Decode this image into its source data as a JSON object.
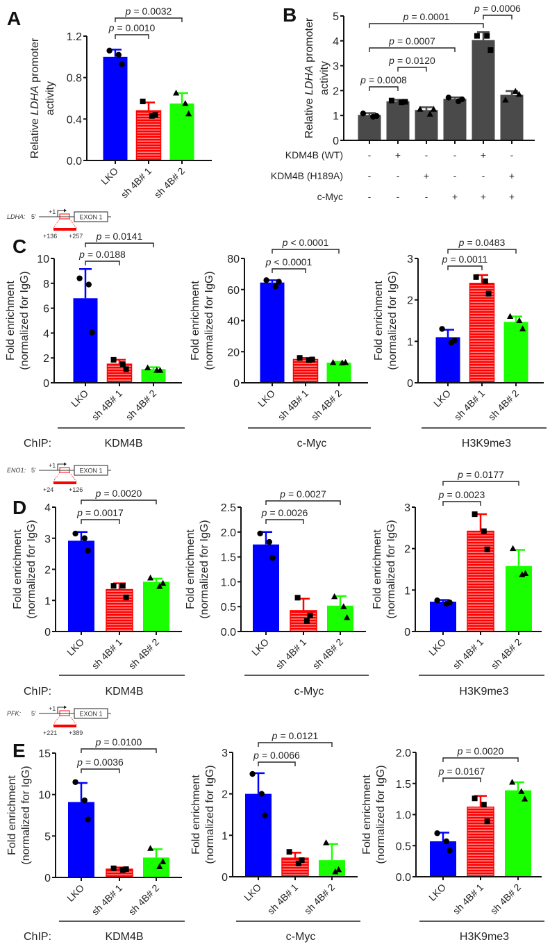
{
  "colors": {
    "lko": "#0000ff",
    "sh1": "#ff0000",
    "sh2": "#1aff00",
    "b_bars": "#4a4a4a",
    "axis": "#111111"
  },
  "panel_letters": {
    "A": "A",
    "B": "B",
    "C": "C",
    "D": "D",
    "E": "E"
  },
  "chip_label": "ChIP:",
  "p_symbol": "p",
  "gene_diagrams": [
    {
      "gene": "LDHA:",
      "five_prime": "5'",
      "tss": "+1",
      "exon": "EXON 1",
      "region_start": "+136",
      "region_end": "+257"
    },
    {
      "gene": "ENO1:",
      "five_prime": "5'",
      "tss": "+1",
      "exon": "EXON 1",
      "region_start": "+24",
      "region_end": "+126"
    },
    {
      "gene": "PFK:",
      "five_prime": "5'",
      "tss": "+1",
      "exon": "EXON 1",
      "region_start": "+221",
      "region_end": "+389"
    }
  ],
  "panel_b_conditions": [
    {
      "label": "KDM4B (WT)",
      "signs": [
        "-",
        "+",
        "-",
        "-",
        "+",
        "-"
      ]
    },
    {
      "label": "KDM4B (H189A)",
      "signs": [
        "-",
        "-",
        "+",
        "-",
        "-",
        "+"
      ]
    },
    {
      "label": "c-Myc",
      "signs": [
        "-",
        "-",
        "-",
        "+",
        "+",
        "+"
      ]
    }
  ],
  "chart_data": [
    {
      "id": "A",
      "type": "bar",
      "panel": "A",
      "ylabel": [
        [
          {
            "text": "Relative ",
            "italic": false
          },
          {
            "text": "LDHA",
            "italic": true
          },
          {
            "text": " promoter",
            "italic": false
          }
        ],
        [
          {
            "text": "activity",
            "italic": false
          }
        ]
      ],
      "ylim": [
        0,
        1.2
      ],
      "yticks": [
        "0.0",
        "0.4",
        "0.8",
        "1.2"
      ],
      "ytick_values": [
        0,
        0.4,
        0.8,
        1.2
      ],
      "categories": [
        "LKO",
        "sh 4B# 1",
        "sh 4B# 2"
      ],
      "means": [
        1.0,
        0.48,
        0.55
      ],
      "error_upper": [
        1.07,
        0.56,
        0.65
      ],
      "points": [
        [
          1.06,
          1.02,
          0.93
        ],
        [
          0.57,
          0.43,
          0.44
        ],
        [
          0.65,
          0.55,
          0.45
        ]
      ],
      "markers": [
        "circle",
        "square",
        "triangle"
      ],
      "fills": [
        "lko",
        "sh1",
        "sh2"
      ],
      "comparisons": [
        {
          "between": [
            0,
            1
          ],
          "p": "= 0.0010"
        },
        {
          "between": [
            0,
            2
          ],
          "p": "= 0.0032"
        }
      ]
    },
    {
      "id": "B",
      "type": "bar",
      "panel": "B",
      "ylabel": [
        [
          {
            "text": "Relative ",
            "italic": false
          },
          {
            "text": "LDHA",
            "italic": true
          },
          {
            "text": " promoter",
            "italic": false
          }
        ],
        [
          {
            "text": "activity",
            "italic": false
          }
        ]
      ],
      "ylim": [
        0,
        5
      ],
      "yticks": [
        "0",
        "1",
        "2",
        "3",
        "4",
        "5"
      ],
      "ytick_values": [
        0,
        1,
        2,
        3,
        4,
        5
      ],
      "categories": [],
      "means": [
        1.02,
        1.57,
        1.22,
        1.67,
        4.03,
        1.83
      ],
      "error_upper": [
        1.1,
        1.63,
        1.33,
        1.73,
        4.35,
        1.98
      ],
      "points": [
        [
          1.08,
          0.95,
          0.98
        ],
        [
          1.6,
          1.53,
          1.55
        ],
        [
          1.25,
          1.05,
          1.25
        ],
        [
          1.72,
          1.57,
          1.65
        ],
        [
          4.2,
          4.2,
          3.63
        ],
        [
          1.62,
          1.97,
          1.85
        ]
      ],
      "markers": [
        "circle",
        "square",
        "triangle",
        "circle",
        "square",
        "triangle"
      ],
      "fills": [
        "b_bars",
        "b_bars",
        "b_bars",
        "b_bars",
        "b_bars",
        "b_bars"
      ],
      "comparisons": [
        {
          "between": [
            0,
            1
          ],
          "p": "= 0.0008"
        },
        {
          "between": [
            1,
            2
          ],
          "p": "= 0.0120"
        },
        {
          "between": [
            0,
            3
          ],
          "p": "= 0.0007"
        },
        {
          "between": [
            0,
            4
          ],
          "p": "= 0.0001"
        },
        {
          "between": [
            4,
            5
          ],
          "p": "= 0.0006"
        }
      ]
    },
    {
      "id": "C1",
      "type": "bar",
      "panel": "C",
      "chip_target": "KDM4B",
      "ylabel": [
        [
          {
            "text": "Fold enrichment",
            "italic": false
          }
        ],
        [
          {
            "text": "(normalized for IgG)",
            "italic": false
          }
        ]
      ],
      "ylim": [
        0,
        10
      ],
      "yticks": [
        "0",
        "2",
        "4",
        "6",
        "8",
        "10"
      ],
      "ytick_values": [
        0,
        2,
        4,
        6,
        8,
        10
      ],
      "categories": [
        "LKO",
        "sh 4B# 1",
        "sh 4B# 2"
      ],
      "means": [
        6.8,
        1.5,
        1.1
      ],
      "error_upper": [
        9.15,
        1.85,
        1.25
      ],
      "points": [
        [
          8.4,
          7.9,
          4.05
        ],
        [
          1.85,
          1.5,
          1.1
        ],
        [
          1.2,
          1.0,
          1.0
        ]
      ],
      "markers": [
        "circle",
        "square",
        "triangle"
      ],
      "fills": [
        "lko",
        "sh1",
        "sh2"
      ],
      "comparisons": [
        {
          "between": [
            0,
            1
          ],
          "p": "= 0.0188"
        },
        {
          "between": [
            0,
            2
          ],
          "p": "= 0.0141"
        }
      ]
    },
    {
      "id": "C2",
      "type": "bar",
      "panel": "C",
      "chip_target": "c-Myc",
      "ylabel": [
        [
          {
            "text": "Fold enrichment",
            "italic": false
          }
        ],
        [
          {
            "text": "(normalized for IgG)",
            "italic": false
          }
        ]
      ],
      "ylim": [
        0,
        80
      ],
      "yticks": [
        "0",
        "20",
        "40",
        "60",
        "80"
      ],
      "ytick_values": [
        0,
        20,
        40,
        60,
        80
      ],
      "categories": [
        "LKO",
        "sh 4B# 1",
        "sh 4B# 2"
      ],
      "means": [
        64.5,
        15,
        13
      ],
      "error_upper": [
        66,
        16,
        13.5
      ],
      "points": [
        [
          66,
          62,
          65
        ],
        [
          16,
          14.5,
          15
        ],
        [
          13,
          12.8,
          13
        ]
      ],
      "markers": [
        "circle",
        "square",
        "triangle"
      ],
      "fills": [
        "lko",
        "sh1",
        "sh2"
      ],
      "comparisons": [
        {
          "between": [
            0,
            1
          ],
          "p": "< 0.0001"
        },
        {
          "between": [
            0,
            2
          ],
          "p": "< 0.0001"
        }
      ]
    },
    {
      "id": "C3",
      "type": "bar",
      "panel": "C",
      "chip_target": "H3K9me3",
      "ylabel": [
        [
          {
            "text": "Fold enrichment",
            "italic": false
          }
        ],
        [
          {
            "text": "(normalized for IgG)",
            "italic": false
          }
        ]
      ],
      "ylim": [
        0,
        3
      ],
      "yticks": [
        "0",
        "1",
        "2",
        "3"
      ],
      "ytick_values": [
        0,
        1,
        2,
        3
      ],
      "categories": [
        "LKO",
        "sh 4B# 1",
        "sh 4B# 2"
      ],
      "means": [
        1.1,
        2.4,
        1.47
      ],
      "error_upper": [
        1.28,
        2.6,
        1.6
      ],
      "points": [
        [
          1.3,
          0.97,
          1.02
        ],
        [
          2.55,
          2.45,
          2.15
        ],
        [
          1.6,
          1.5,
          1.3
        ]
      ],
      "markers": [
        "circle",
        "square",
        "triangle"
      ],
      "fills": [
        "lko",
        "sh1",
        "sh2"
      ],
      "comparisons": [
        {
          "between": [
            0,
            1
          ],
          "p": "= 0.0011"
        },
        {
          "between": [
            0,
            2
          ],
          "p": "= 0.0483"
        }
      ]
    },
    {
      "id": "D1",
      "type": "bar",
      "panel": "D",
      "chip_target": "KDM4B",
      "ylabel": [
        [
          {
            "text": "Fold enrichment",
            "italic": false
          }
        ],
        [
          {
            "text": "(normalized for IgG)",
            "italic": false
          }
        ]
      ],
      "ylim": [
        0,
        4
      ],
      "yticks": [
        "0",
        "1",
        "2",
        "3",
        "4"
      ],
      "ytick_values": [
        0,
        1,
        2,
        3,
        4
      ],
      "categories": [
        "LKO",
        "sh 4B# 1",
        "sh 4B# 2"
      ],
      "means": [
        2.92,
        1.35,
        1.6
      ],
      "error_upper": [
        3.2,
        1.55,
        1.7
      ],
      "points": [
        [
          3.15,
          3.0,
          2.6
        ],
        [
          1.47,
          1.47,
          1.1
        ],
        [
          1.72,
          1.45,
          1.55
        ]
      ],
      "markers": [
        "circle",
        "square",
        "triangle"
      ],
      "fills": [
        "lko",
        "sh1",
        "sh2"
      ],
      "comparisons": [
        {
          "between": [
            0,
            1
          ],
          "p": "= 0.0017"
        },
        {
          "between": [
            0,
            2
          ],
          "p": "= 0.0020"
        }
      ]
    },
    {
      "id": "D2",
      "type": "bar",
      "panel": "D",
      "chip_target": "c-Myc",
      "ylabel": [
        [
          {
            "text": "Fold enrichment",
            "italic": false
          }
        ],
        [
          {
            "text": "(normalized for IgG)",
            "italic": false
          }
        ]
      ],
      "ylim": [
        0,
        2.5
      ],
      "yticks": [
        "0.0",
        "0.5",
        "1.0",
        "1.5",
        "2.0",
        "2.5"
      ],
      "ytick_values": [
        0,
        0.5,
        1,
        1.5,
        2,
        2.5
      ],
      "categories": [
        "LKO",
        "sh 4B# 1",
        "sh 4B# 2"
      ],
      "means": [
        1.75,
        0.42,
        0.52
      ],
      "error_upper": [
        2.0,
        0.66,
        0.71
      ],
      "points": [
        [
          1.97,
          1.8,
          1.48
        ],
        [
          0.68,
          0.21,
          0.32
        ],
        [
          0.7,
          0.5,
          0.28
        ]
      ],
      "markers": [
        "circle",
        "square",
        "triangle"
      ],
      "fills": [
        "lko",
        "sh1",
        "sh2"
      ],
      "comparisons": [
        {
          "between": [
            0,
            1
          ],
          "p": "= 0.0026"
        },
        {
          "between": [
            0,
            2
          ],
          "p": "= 0.0027"
        }
      ]
    },
    {
      "id": "D3",
      "type": "bar",
      "panel": "D",
      "chip_target": "H3K9me3",
      "ylabel": [
        [
          {
            "text": "Fold enrichment",
            "italic": false
          }
        ],
        [
          {
            "text": "(normalized for IgG)",
            "italic": false
          }
        ]
      ],
      "ylim": [
        0,
        3
      ],
      "yticks": [
        "0",
        "1",
        "2",
        "3"
      ],
      "ytick_values": [
        0,
        1,
        2,
        3
      ],
      "categories": [
        "LKO",
        "sh 4B# 1",
        "sh 4B# 2"
      ],
      "means": [
        0.72,
        2.42,
        1.58
      ],
      "error_upper": [
        0.76,
        2.83,
        1.97
      ],
      "points": [
        [
          0.75,
          0.67,
          0.7
        ],
        [
          2.83,
          2.42,
          1.98
        ],
        [
          2.0,
          1.37,
          1.4
        ]
      ],
      "markers": [
        "circle",
        "square",
        "triangle"
      ],
      "fills": [
        "lko",
        "sh1",
        "sh2"
      ],
      "comparisons": [
        {
          "between": [
            0,
            1
          ],
          "p": "= 0.0023"
        },
        {
          "between": [
            0,
            2
          ],
          "p": "= 0.0177"
        }
      ]
    },
    {
      "id": "E1",
      "type": "bar",
      "panel": "E",
      "chip_target": "KDM4B",
      "ylabel": [
        [
          {
            "text": "Fold enrichment",
            "italic": false
          }
        ],
        [
          {
            "text": "(normalized for IgG)",
            "italic": false
          }
        ]
      ],
      "ylim": [
        0,
        15
      ],
      "yticks": [
        "0",
        "5",
        "10",
        "15"
      ],
      "ytick_values": [
        0,
        5,
        10,
        15
      ],
      "categories": [
        "LKO",
        "sh 4B# 1",
        "sh 4B# 2"
      ],
      "means": [
        9.1,
        1.0,
        2.4
      ],
      "error_upper": [
        11.4,
        1.2,
        3.4
      ],
      "points": [
        [
          11.5,
          9.3,
          7.0
        ],
        [
          1.1,
          0.9,
          1.0
        ],
        [
          3.5,
          1.3,
          1.9
        ]
      ],
      "markers": [
        "circle",
        "square",
        "triangle"
      ],
      "fills": [
        "lko",
        "sh1",
        "sh2"
      ],
      "comparisons": [
        {
          "between": [
            0,
            1
          ],
          "p": "= 0.0036"
        },
        {
          "between": [
            0,
            2
          ],
          "p": "= 0.0100"
        }
      ]
    },
    {
      "id": "E2",
      "type": "bar",
      "panel": "E",
      "chip_target": "c-Myc",
      "ylabel": [
        [
          {
            "text": "Fold enrichment",
            "italic": false
          }
        ],
        [
          {
            "text": "(normalized for IgG)",
            "italic": false
          }
        ]
      ],
      "ylim": [
        0,
        3
      ],
      "yticks": [
        "0",
        "1",
        "2",
        "3"
      ],
      "ytick_values": [
        0,
        1,
        2,
        3
      ],
      "categories": [
        "LKO",
        "sh 4B# 1",
        "sh 4B# 2"
      ],
      "means": [
        2.0,
        0.45,
        0.4
      ],
      "error_upper": [
        2.5,
        0.58,
        0.79
      ],
      "points": [
        [
          2.48,
          2.0,
          1.48
        ],
        [
          0.6,
          0.32,
          0.4
        ],
        [
          0.82,
          0.12,
          0.17
        ]
      ],
      "markers": [
        "circle",
        "square",
        "triangle"
      ],
      "fills": [
        "lko",
        "sh1",
        "sh2"
      ],
      "comparisons": [
        {
          "between": [
            0,
            1
          ],
          "p": "= 0.0066"
        },
        {
          "between": [
            0,
            2
          ],
          "p": "= 0.0121"
        }
      ]
    },
    {
      "id": "E3",
      "type": "bar",
      "panel": "E",
      "chip_target": "H3K9me3",
      "ylabel": [
        [
          {
            "text": "Fold enrichment",
            "italic": false
          }
        ],
        [
          {
            "text": "(normalized for IgG)",
            "italic": false
          }
        ]
      ],
      "ylim": [
        0,
        2
      ],
      "yticks": [
        "0.0",
        "0.5",
        "1.0",
        "1.5",
        "2.0"
      ],
      "ytick_values": [
        0,
        0.5,
        1,
        1.5,
        2
      ],
      "categories": [
        "LKO",
        "sh 4B# 1",
        "sh 4B# 2"
      ],
      "means": [
        0.57,
        1.12,
        1.39
      ],
      "error_upper": [
        0.71,
        1.3,
        1.52
      ],
      "points": [
        [
          0.7,
          0.57,
          0.42
        ],
        [
          1.26,
          1.16,
          0.89
        ],
        [
          1.52,
          1.37,
          1.25
        ]
      ],
      "markers": [
        "circle",
        "square",
        "triangle"
      ],
      "fills": [
        "lko",
        "sh1",
        "sh2"
      ],
      "comparisons": [
        {
          "between": [
            0,
            1
          ],
          "p": "= 0.0167"
        },
        {
          "between": [
            0,
            2
          ],
          "p": "= 0.0020"
        }
      ]
    }
  ]
}
